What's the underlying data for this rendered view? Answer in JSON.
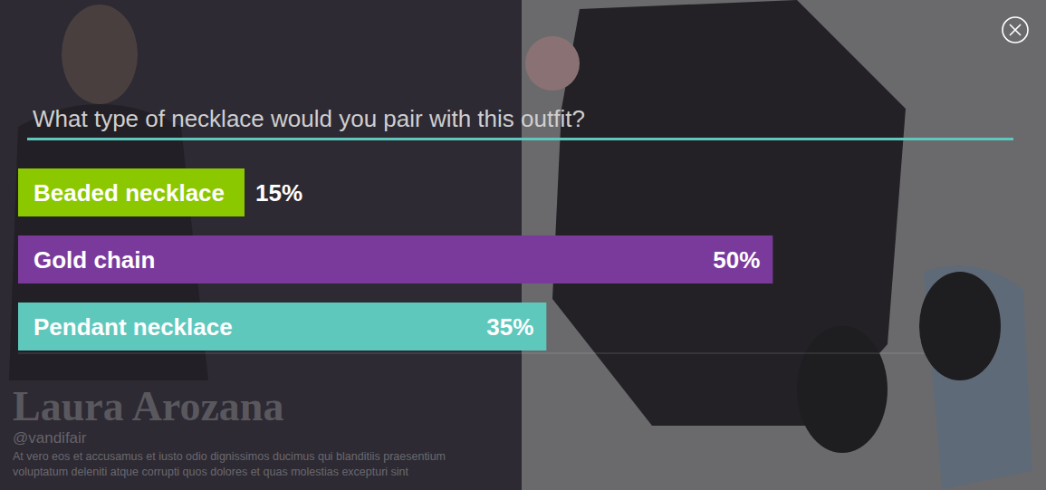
{
  "chart_data": {
    "type": "bar",
    "orientation": "horizontal",
    "title": "What type of necklace would you pair with this outfit?",
    "categories": [
      "Beaded necklace",
      "Gold chain",
      "Pendant necklace"
    ],
    "values": [
      15,
      50,
      35
    ],
    "value_labels": [
      "15%",
      "50%",
      "35%"
    ],
    "colors": [
      "#8cc800",
      "#7a3a9c",
      "#5ec8bd"
    ],
    "xlim": [
      0,
      60
    ],
    "data_labels": true,
    "tick_labels": false,
    "annotations": [
      "Laura Arozana",
      "@vandifair",
      "At vero eos et accusamus et iusto odio dignissimos ducimus qui blanditiis praesentium voluptatum deleniti atque corrupti quos dolores et quas molestias excepturi sint"
    ]
  }
}
